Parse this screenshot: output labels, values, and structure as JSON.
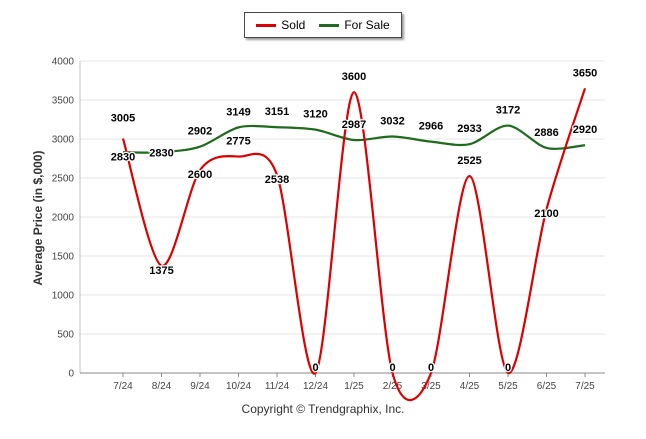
{
  "legend": {
    "sold": "Sold",
    "for_sale": "For Sale"
  },
  "colors": {
    "sold": "#dd0000",
    "for_sale": "#1e6b1e",
    "grid": "#e4e4e4",
    "axis": "#c0c0c0"
  },
  "footer": {
    "copyright": "Copyright © Trendgraphix, Inc."
  },
  "chart_data": {
    "type": "line",
    "title": "",
    "xlabel": "",
    "ylabel": "Average Price (in $,000)",
    "ylim": [
      0,
      4000
    ],
    "yticks": [
      0,
      500,
      1000,
      1500,
      2000,
      2500,
      3000,
      3500,
      4000
    ],
    "grid": true,
    "legend_position": "top-center",
    "categories": [
      "7/24",
      "8/24",
      "9/24",
      "10/24",
      "11/24",
      "12/24",
      "1/25",
      "2/25",
      "3/25",
      "4/25",
      "5/25",
      "6/25",
      "7/25"
    ],
    "series": [
      {
        "name": "Sold",
        "color": "#dd0000",
        "values": [
          3005,
          1375,
          2600,
          2775,
          2538,
          0,
          3600,
          0,
          0,
          2525,
          0,
          2100,
          3650
        ]
      },
      {
        "name": "For Sale",
        "color": "#1e6b1e",
        "values": [
          2830,
          2830,
          2902,
          3149,
          3151,
          3120,
          2987,
          3032,
          2966,
          2933,
          3172,
          2886,
          2920
        ]
      }
    ]
  }
}
